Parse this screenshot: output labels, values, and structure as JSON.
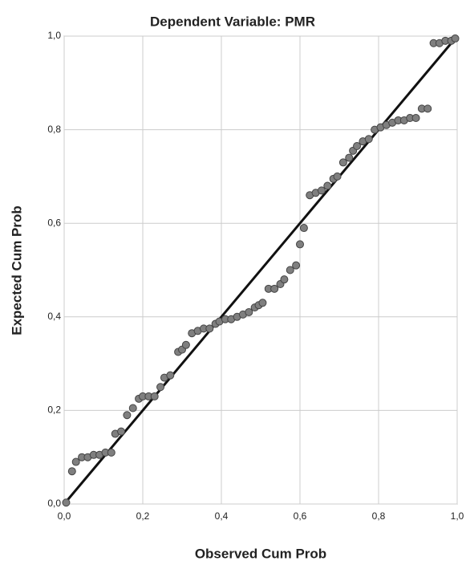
{
  "chart_data": {
    "type": "scatter",
    "title": "Dependent Variable: PMR",
    "xlabel": "Observed Cum Prob",
    "ylabel": "Expected Cum Prob",
    "x": [
      0.005,
      0.02,
      0.03,
      0.045,
      0.06,
      0.075,
      0.09,
      0.105,
      0.12,
      0.13,
      0.145,
      0.16,
      0.175,
      0.19,
      0.2,
      0.215,
      0.23,
      0.245,
      0.255,
      0.27,
      0.29,
      0.3,
      0.31,
      0.325,
      0.34,
      0.355,
      0.37,
      0.385,
      0.395,
      0.41,
      0.425,
      0.44,
      0.455,
      0.47,
      0.485,
      0.495,
      0.505,
      0.52,
      0.535,
      0.55,
      0.56,
      0.575,
      0.59,
      0.6,
      0.61,
      0.625,
      0.64,
      0.655,
      0.67,
      0.685,
      0.695,
      0.71,
      0.725,
      0.735,
      0.745,
      0.76,
      0.775,
      0.79,
      0.805,
      0.82,
      0.835,
      0.85,
      0.865,
      0.88,
      0.895,
      0.91,
      0.925,
      0.94,
      0.955,
      0.97,
      0.985,
      0.995
    ],
    "values": [
      0.003,
      0.07,
      0.09,
      0.1,
      0.1,
      0.105,
      0.105,
      0.11,
      0.11,
      0.15,
      0.155,
      0.19,
      0.205,
      0.225,
      0.23,
      0.23,
      0.23,
      0.25,
      0.27,
      0.275,
      0.325,
      0.33,
      0.34,
      0.365,
      0.37,
      0.375,
      0.375,
      0.385,
      0.39,
      0.395,
      0.395,
      0.4,
      0.405,
      0.41,
      0.42,
      0.425,
      0.43,
      0.46,
      0.46,
      0.47,
      0.48,
      0.5,
      0.51,
      0.555,
      0.59,
      0.66,
      0.665,
      0.67,
      0.68,
      0.695,
      0.7,
      0.73,
      0.74,
      0.755,
      0.765,
      0.775,
      0.78,
      0.8,
      0.805,
      0.81,
      0.815,
      0.82,
      0.82,
      0.825,
      0.825,
      0.845,
      0.845,
      0.985,
      0.985,
      0.99,
      0.99,
      0.995
    ],
    "color": "#7f7f7f",
    "line_color": "#111111",
    "xlim": [
      0,
      1
    ],
    "ylim": [
      0,
      1
    ],
    "xticks": [
      {
        "value": 0,
        "label": "0,0"
      },
      {
        "value": 0.2,
        "label": "0,2"
      },
      {
        "value": 0.4,
        "label": "0,4"
      },
      {
        "value": 0.6,
        "label": "0,6"
      },
      {
        "value": 0.8,
        "label": "0,8"
      },
      {
        "value": 1,
        "label": "1,0"
      }
    ],
    "yticks": [
      {
        "value": 0,
        "label": "0,0"
      },
      {
        "value": 0.2,
        "label": "0,2"
      },
      {
        "value": 0.4,
        "label": "0,4"
      },
      {
        "value": 0.6,
        "label": "0,6"
      },
      {
        "value": 0.8,
        "label": "0,8"
      },
      {
        "value": 1,
        "label": "1,0"
      }
    ],
    "grid": true
  }
}
